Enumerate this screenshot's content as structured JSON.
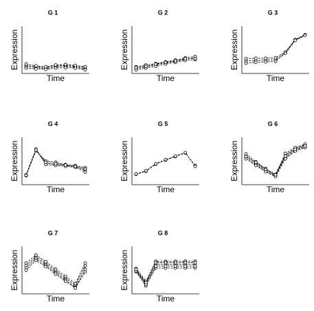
{
  "chart_data": [
    {
      "type": "line",
      "title": "G 1",
      "xlabel": "Time",
      "ylabel": "Expression",
      "categories": [
        null,
        null,
        null,
        null,
        null,
        null,
        null
      ],
      "ylim": [
        0,
        1
      ],
      "color": "#000000",
      "series": [
        {
          "values": [
            0.12,
            0.1,
            0.08,
            0.12,
            0.13,
            0.11,
            0.07
          ]
        },
        {
          "values": [
            0.15,
            0.12,
            0.1,
            0.14,
            0.15,
            0.13,
            0.1
          ]
        },
        {
          "values": [
            0.09,
            0.07,
            0.06,
            0.09,
            0.1,
            0.09,
            0.05
          ]
        },
        {
          "values": [
            0.18,
            0.14,
            0.12,
            0.16,
            0.17,
            0.15,
            0.12
          ]
        }
      ]
    },
    {
      "type": "line",
      "title": "G 2",
      "xlabel": "Time",
      "ylabel": "Expression",
      "categories": [
        null,
        null,
        null,
        null,
        null,
        null,
        null
      ],
      "ylim": [
        0,
        1
      ],
      "color": "#000000",
      "series": [
        {
          "values": [
            0.08,
            0.12,
            0.16,
            0.21,
            0.24,
            0.29,
            0.32
          ]
        },
        {
          "values": [
            0.12,
            0.16,
            0.19,
            0.23,
            0.27,
            0.32,
            0.35
          ]
        },
        {
          "values": [
            0.05,
            0.09,
            0.13,
            0.18,
            0.22,
            0.26,
            0.28
          ]
        },
        {
          "values": [
            0.1,
            0.13,
            0.18,
            0.22,
            0.25,
            0.3,
            0.3
          ]
        }
      ]
    },
    {
      "type": "line",
      "title": "G 3",
      "xlabel": "Time",
      "ylabel": "Expression",
      "categories": [
        null,
        null,
        null,
        null,
        null,
        null,
        null
      ],
      "ylim": [
        0,
        1
      ],
      "color": "#000000",
      "series": [
        {
          "values": [
            0.25,
            0.26,
            0.27,
            0.28,
            0.43,
            0.72,
            0.83
          ]
        },
        {
          "values": [
            0.3,
            0.31,
            0.31,
            0.32,
            0.45,
            0.73,
            0.84
          ]
        },
        {
          "values": [
            0.2,
            0.22,
            0.23,
            0.24,
            0.42,
            0.71,
            0.82
          ]
        }
      ]
    },
    {
      "type": "line",
      "title": "G 4",
      "xlabel": "Time",
      "ylabel": "Expression",
      "categories": [
        null,
        null,
        null,
        null,
        null,
        null,
        null
      ],
      "ylim": [
        0,
        1
      ],
      "color": "#000000",
      "series": [
        {
          "values": [
            0.18,
            0.75,
            0.45,
            0.42,
            0.4,
            0.37,
            0.3
          ]
        },
        {
          "values": [
            0.17,
            0.73,
            0.5,
            0.47,
            0.42,
            0.4,
            0.35
          ]
        },
        {
          "values": [
            0.19,
            0.77,
            0.42,
            0.4,
            0.38,
            0.36,
            0.25
          ]
        },
        {
          "values": [
            0.18,
            0.74,
            0.47,
            0.44,
            0.41,
            0.38,
            0.32
          ]
        }
      ]
    },
    {
      "type": "line",
      "title": "G 5",
      "xlabel": "Time",
      "ylabel": "Expression",
      "categories": [
        null,
        null,
        null,
        null,
        null,
        null,
        null
      ],
      "ylim": [
        0,
        1
      ],
      "color": "#000000",
      "series": [
        {
          "values": [
            0.2,
            0.27,
            0.43,
            0.52,
            0.6,
            0.68,
            0.4
          ]
        },
        {
          "values": [
            0.21,
            0.28,
            0.44,
            0.53,
            0.61,
            0.69,
            0.38
          ]
        }
      ]
    },
    {
      "type": "line",
      "title": "G 6",
      "xlabel": "Time",
      "ylabel": "Expression",
      "categories": [
        null,
        null,
        null,
        null,
        null,
        null,
        null
      ],
      "ylim": [
        0,
        1
      ],
      "color": "#000000",
      "series": [
        {
          "values": [
            0.62,
            0.45,
            0.3,
            0.18,
            0.63,
            0.78,
            0.86
          ]
        },
        {
          "values": [
            0.58,
            0.42,
            0.27,
            0.16,
            0.58,
            0.74,
            0.82
          ]
        },
        {
          "values": [
            0.66,
            0.48,
            0.33,
            0.2,
            0.67,
            0.8,
            0.88
          ]
        },
        {
          "values": [
            0.55,
            0.4,
            0.26,
            0.15,
            0.55,
            0.72,
            0.8
          ]
        },
        {
          "values": [
            0.6,
            0.47,
            0.31,
            0.19,
            0.61,
            0.76,
            0.84
          ]
        }
      ]
    },
    {
      "type": "line",
      "title": "G 7",
      "xlabel": "Time",
      "ylabel": "Expression",
      "categories": [
        null,
        null,
        null,
        null,
        null,
        null,
        null
      ],
      "ylim": [
        0,
        1
      ],
      "color": "#000000",
      "series": [
        {
          "values": [
            0.6,
            0.8,
            0.65,
            0.48,
            0.32,
            0.16,
            0.6
          ]
        },
        {
          "values": [
            0.55,
            0.76,
            0.61,
            0.44,
            0.28,
            0.12,
            0.52
          ]
        },
        {
          "values": [
            0.66,
            0.84,
            0.69,
            0.52,
            0.36,
            0.2,
            0.66
          ]
        },
        {
          "values": [
            0.5,
            0.72,
            0.58,
            0.41,
            0.25,
            0.1,
            0.46
          ]
        }
      ]
    },
    {
      "type": "line",
      "title": "G 8",
      "xlabel": "Time",
      "ylabel": "Expression",
      "categories": [
        null,
        null,
        null,
        null,
        null,
        null,
        null
      ],
      "ylim": [
        0,
        1
      ],
      "color": "#000000",
      "series": [
        {
          "values": [
            0.5,
            0.2,
            0.63,
            0.63,
            0.63,
            0.63,
            0.63
          ]
        },
        {
          "values": [
            0.46,
            0.15,
            0.55,
            0.55,
            0.55,
            0.55,
            0.55
          ]
        },
        {
          "values": [
            0.54,
            0.25,
            0.7,
            0.7,
            0.7,
            0.7,
            0.7
          ]
        },
        {
          "values": [
            0.48,
            0.18,
            0.59,
            0.59,
            0.59,
            0.59,
            0.59
          ]
        },
        {
          "values": [
            0.52,
            0.22,
            0.67,
            0.67,
            0.67,
            0.67,
            0.67
          ]
        }
      ]
    }
  ]
}
